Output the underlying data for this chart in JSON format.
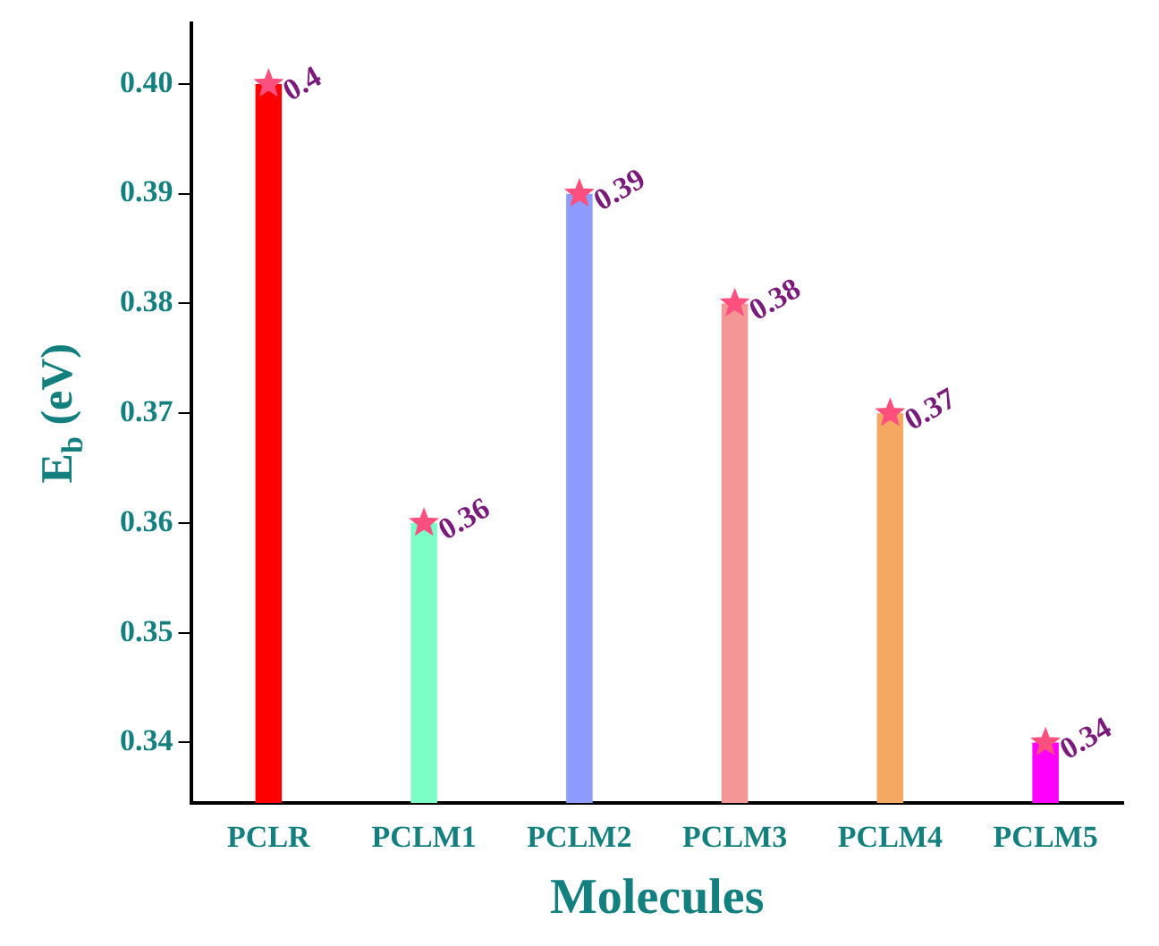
{
  "chart_data": {
    "type": "bar",
    "xlabel": "Molecules",
    "ylabel": "E$_{b}$ (eV)",
    "categories": [
      "PCLR",
      "PCLM1",
      "PCLM2",
      "PCLM3",
      "PCLM4",
      "PCLM5"
    ],
    "ylim": [
      0.3345,
      0.4055
    ],
    "yticks": [
      0.34,
      0.35,
      0.36,
      0.37,
      0.38,
      0.39,
      {
        "value": 0.4,
        "label": "0.40"
      }
    ],
    "grid": false,
    "legend": false,
    "series": [
      {
        "colors": [
          "#ff0000",
          "#7dffc8",
          "#8e9cff",
          "#f59696",
          "#f5a862",
          "#ff00ff"
        ],
        "values": [
          0.4,
          0.36,
          0.39,
          0.38,
          0.37,
          0.34
        ]
      },
      {
        "type": "scatter",
        "marker": "star",
        "color": "#ff4f7f",
        "x": [
          "PCLR",
          "PCLM1",
          "PCLM2",
          "PCLM3",
          "PCLM4",
          "PCLM5"
        ],
        "values": [
          0.4,
          0.36,
          0.39,
          0.38,
          0.37,
          0.34
        ],
        "data_labels": true
      }
    ]
  }
}
